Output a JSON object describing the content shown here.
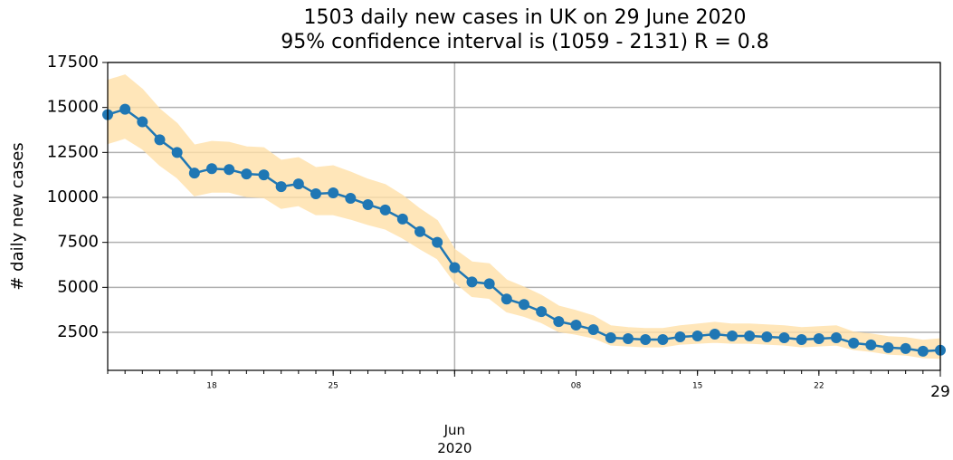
{
  "chart_data": {
    "type": "line",
    "title": "1503 daily new cases in UK on 29 June 2020",
    "subtitle": "95% confidence interval is (1059 - 2131) R = 0.8",
    "y_label": "# daily new cases",
    "x": [
      "2020-05-12",
      "2020-05-13",
      "2020-05-14",
      "2020-05-15",
      "2020-05-16",
      "2020-05-17",
      "2020-05-18",
      "2020-05-19",
      "2020-05-20",
      "2020-05-21",
      "2020-05-22",
      "2020-05-23",
      "2020-05-24",
      "2020-05-25",
      "2020-05-26",
      "2020-05-27",
      "2020-05-28",
      "2020-05-29",
      "2020-05-30",
      "2020-05-31",
      "2020-06-01",
      "2020-06-02",
      "2020-06-03",
      "2020-06-04",
      "2020-06-05",
      "2020-06-06",
      "2020-06-07",
      "2020-06-08",
      "2020-06-09",
      "2020-06-10",
      "2020-06-11",
      "2020-06-12",
      "2020-06-13",
      "2020-06-14",
      "2020-06-15",
      "2020-06-16",
      "2020-06-17",
      "2020-06-18",
      "2020-06-19",
      "2020-06-20",
      "2020-06-21",
      "2020-06-22",
      "2020-06-23",
      "2020-06-24",
      "2020-06-25",
      "2020-06-26",
      "2020-06-27",
      "2020-06-28",
      "2020-06-29"
    ],
    "series": [
      {
        "color": "#1f77b4",
        "values": [
          14600,
          14900,
          14200,
          13200,
          12500,
          11350,
          11600,
          11550,
          11300,
          11250,
          10600,
          10750,
          10200,
          10250,
          9950,
          9600,
          9300,
          8800,
          8100,
          7500,
          6100,
          5300,
          5200,
          4350,
          4050,
          3650,
          3100,
          2900,
          2650,
          2200,
          2150,
          2100,
          2100,
          2250,
          2300,
          2400,
          2300,
          2300,
          2250,
          2200,
          2100,
          2150,
          2200,
          1900,
          1800,
          1650,
          1600,
          1450,
          1503
        ]
      }
    ],
    "band": {
      "color": "#ffe0a8",
      "upper": [
        16500,
        16800,
        16000,
        14900,
        14100,
        12900,
        13100,
        13050,
        12800,
        12750,
        12050,
        12200,
        11650,
        11750,
        11400,
        11000,
        10700,
        10100,
        9350,
        8700,
        7100,
        6400,
        6300,
        5400,
        5000,
        4550,
        3950,
        3700,
        3400,
        2850,
        2750,
        2700,
        2700,
        2850,
        2950,
        3050,
        2950,
        2950,
        2900,
        2850,
        2750,
        2800,
        2850,
        2500,
        2400,
        2250,
        2200,
        2050,
        2131
      ],
      "lower": [
        13000,
        13300,
        12700,
        11800,
        11100,
        10100,
        10300,
        10300,
        10050,
        10000,
        9400,
        9550,
        9050,
        9050,
        8800,
        8500,
        8250,
        7750,
        7150,
        6600,
        5300,
        4500,
        4400,
        3650,
        3400,
        3050,
        2550,
        2400,
        2200,
        1800,
        1750,
        1700,
        1700,
        1850,
        1900,
        1950,
        1900,
        1900,
        1850,
        1800,
        1700,
        1750,
        1800,
        1550,
        1450,
        1300,
        1250,
        1100,
        1059
      ]
    },
    "xlim": [
      "2020-05-12",
      "2020-06-29"
    ],
    "xticks": [
      {
        "value": "2020-05-18",
        "label": "18"
      },
      {
        "value": "2020-05-25",
        "label": "25"
      },
      {
        "value": "2020-06-08",
        "label": "08"
      },
      {
        "value": "2020-06-15",
        "label": "15"
      },
      {
        "value": "2020-06-22",
        "label": "22"
      }
    ],
    "major_xticks": [
      {
        "value": "2020-06-01",
        "label": "Jun\n2020"
      },
      {
        "value": "2020-06-29",
        "label": "29"
      }
    ],
    "ylim": [
      386,
      17500
    ],
    "yticks": [
      2500,
      5000,
      7500,
      10000,
      12500,
      15000,
      17500
    ],
    "grid": true
  }
}
